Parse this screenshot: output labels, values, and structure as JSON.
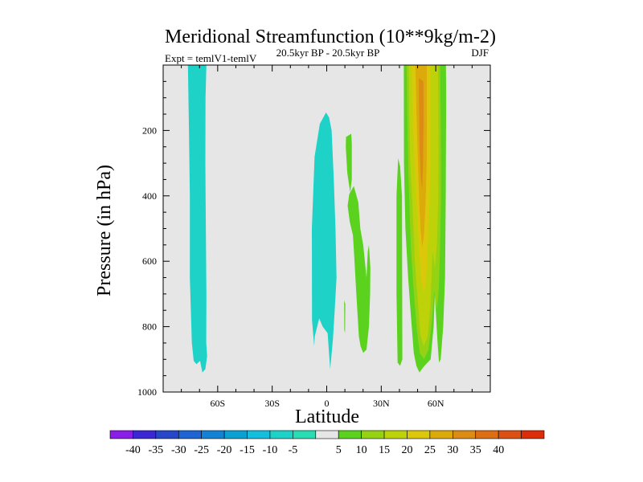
{
  "chart_data": {
    "type": "contour",
    "title": "Meridional Streamfunction (10**9kg/m-2)",
    "experiment_label": "Expt = temlV1-temlV",
    "period_label": "20.5kyr BP - 20.5kyr BP",
    "season_label": "DJF",
    "xlabel": "Latitude",
    "ylabel": "Pressure (in hPa)",
    "xlim": [
      -90,
      90
    ],
    "ylim": [
      1000,
      0
    ],
    "x_ticks": [
      {
        "value": -60,
        "label": "60S"
      },
      {
        "value": -30,
        "label": "30S"
      },
      {
        "value": 0,
        "label": "0"
      },
      {
        "value": 30,
        "label": "30N"
      },
      {
        "value": 60,
        "label": "60N"
      }
    ],
    "y_ticks": [
      {
        "value": 200,
        "label": "200"
      },
      {
        "value": 400,
        "label": "400"
      },
      {
        "value": 600,
        "label": "600"
      },
      {
        "value": 800,
        "label": "800"
      },
      {
        "value": 1000,
        "label": "1000"
      }
    ],
    "plot_background": "#e6e6e6",
    "colorbar": {
      "colors": [
        "#8a1ee6",
        "#3c28d2",
        "#2846c8",
        "#1e64d2",
        "#1482d2",
        "#0aa0d2",
        "#14bedc",
        "#1ed2c8",
        "#28dcb4",
        "#e6e6e6",
        "#5ad21e",
        "#96d214",
        "#bed20a",
        "#dcc80a",
        "#dcaa0a",
        "#dc8c14",
        "#dc6e14",
        "#dc5014",
        "#dc2d0a"
      ],
      "labels": [
        "-40",
        "-35",
        "-30",
        "-25",
        "-20",
        "-15",
        "-10",
        "-5",
        "5",
        "10",
        "15",
        "20",
        "25",
        "30",
        "35",
        "40"
      ]
    },
    "regions": [
      {
        "level": -10,
        "color": "#1ed2c8",
        "points": [
          [
            -76.4,
            0
          ],
          [
            -66.2,
            0
          ],
          [
            -66.7,
            100
          ],
          [
            -66.8,
            300
          ],
          [
            -66.5,
            500
          ],
          [
            -66.2,
            700
          ],
          [
            -66.3,
            850
          ],
          [
            -65.8,
            890
          ],
          [
            -66.8,
            930
          ],
          [
            -68.4,
            940
          ],
          [
            -69.7,
            905
          ],
          [
            -71.7,
            915
          ],
          [
            -73.2,
            905
          ],
          [
            -74.2,
            850
          ],
          [
            -75.3,
            650
          ],
          [
            -75.3,
            400
          ],
          [
            -75.8,
            200
          ]
        ]
      },
      {
        "level": -10,
        "color": "#1ed2c8",
        "points": [
          [
            -0.4,
            145
          ],
          [
            1.3,
            160
          ],
          [
            2.7,
            200
          ],
          [
            3.9,
            350
          ],
          [
            4.8,
            500
          ],
          [
            5.4,
            650
          ],
          [
            4.3,
            760
          ],
          [
            3.4,
            840
          ],
          [
            1.9,
            930
          ],
          [
            0.5,
            820
          ],
          [
            -2.2,
            800
          ],
          [
            -4.1,
            775
          ],
          [
            -6.6,
            830
          ],
          [
            -6.9,
            860
          ],
          [
            -8.1,
            780
          ],
          [
            -8.2,
            500
          ],
          [
            -6.7,
            280
          ],
          [
            -3.8,
            180
          ]
        ]
      },
      {
        "level": 5,
        "color": "#5ad21e",
        "points": [
          [
            10.6,
            220
          ],
          [
            13.5,
            210
          ],
          [
            13.8,
            240
          ],
          [
            13.8,
            350
          ],
          [
            12.9,
            390
          ],
          [
            11.3,
            330
          ],
          [
            10.5,
            250
          ]
        ]
      },
      {
        "level": 5,
        "color": "#5ad21e",
        "points": [
          [
            11.5,
            430
          ],
          [
            12.4,
            395
          ],
          [
            14.9,
            370
          ],
          [
            17.4,
            420
          ],
          [
            18.5,
            500
          ],
          [
            20.1,
            550
          ],
          [
            21.9,
            650
          ],
          [
            22.6,
            570
          ],
          [
            23.2,
            550
          ],
          [
            24.0,
            620
          ],
          [
            23.9,
            700
          ],
          [
            23.2,
            800
          ],
          [
            21.9,
            870
          ],
          [
            20.1,
            880
          ],
          [
            18.6,
            860
          ],
          [
            17.7,
            830
          ],
          [
            16.2,
            690
          ],
          [
            15.1,
            580
          ],
          [
            14.4,
            520
          ],
          [
            12.7,
            480
          ]
        ]
      },
      {
        "level": 5,
        "color": "#5ad21e",
        "points": [
          [
            9.6,
            720
          ],
          [
            10.2,
            730
          ],
          [
            10.1,
            820
          ],
          [
            9.7,
            810
          ]
        ]
      },
      {
        "level": 5,
        "color": "#5ad21e",
        "points": [
          [
            39.3,
            285
          ],
          [
            40.4,
            310
          ],
          [
            41.4,
            400
          ],
          [
            41.5,
            600
          ],
          [
            41.6,
            900
          ],
          [
            40.4,
            920
          ],
          [
            39.0,
            910
          ],
          [
            38.4,
            700
          ],
          [
            38.4,
            400
          ]
        ]
      },
      {
        "level": 5,
        "color": "#5ad21e",
        "points": [
          [
            42.4,
            0
          ],
          [
            65.6,
            0
          ],
          [
            65.7,
            100
          ],
          [
            65.5,
            400
          ],
          [
            65.1,
            650
          ],
          [
            64.1,
            800
          ],
          [
            62.7,
            900
          ],
          [
            61.8,
            910
          ],
          [
            61.0,
            850
          ],
          [
            59.5,
            700
          ],
          [
            58.8,
            800
          ],
          [
            57.2,
            900
          ],
          [
            53.8,
            920
          ],
          [
            51.0,
            940
          ],
          [
            49.3,
            920
          ],
          [
            47.9,
            880
          ],
          [
            46.2,
            760
          ],
          [
            44.8,
            650
          ],
          [
            43.3,
            500
          ],
          [
            42.5,
            300
          ]
        ]
      },
      {
        "level": 10,
        "color": "#96d214",
        "points": [
          [
            44.0,
            0
          ],
          [
            62.4,
            0
          ],
          [
            62.8,
            200
          ],
          [
            62.9,
            400
          ],
          [
            62.4,
            550
          ],
          [
            61.7,
            680
          ],
          [
            60.6,
            750
          ],
          [
            59.1,
            690
          ],
          [
            57.9,
            780
          ],
          [
            56.0,
            870
          ],
          [
            53.6,
            900
          ],
          [
            51.2,
            880
          ],
          [
            49.6,
            810
          ],
          [
            48.0,
            700
          ],
          [
            46.3,
            560
          ],
          [
            45.0,
            350
          ],
          [
            44.3,
            150
          ]
        ]
      },
      {
        "level": 15,
        "color": "#bed20a",
        "points": [
          [
            45.1,
            0
          ],
          [
            61.1,
            0
          ],
          [
            61.5,
            200
          ],
          [
            61.4,
            400
          ],
          [
            60.7,
            540
          ],
          [
            59.6,
            620
          ],
          [
            58.2,
            570
          ],
          [
            57.0,
            740
          ],
          [
            55.5,
            830
          ],
          [
            53.4,
            860
          ],
          [
            51.4,
            820
          ],
          [
            50.1,
            720
          ],
          [
            48.5,
            600
          ],
          [
            47.3,
            450
          ],
          [
            46.0,
            300
          ],
          [
            45.4,
            150
          ]
        ]
      },
      {
        "level": 20,
        "color": "#dcc80a",
        "points": [
          [
            46.8,
            0
          ],
          [
            56.8,
            0
          ],
          [
            57.0,
            150
          ],
          [
            57.1,
            300
          ],
          [
            56.5,
            420
          ],
          [
            55.7,
            540
          ],
          [
            54.7,
            650
          ],
          [
            53.5,
            700
          ],
          [
            52.1,
            660
          ],
          [
            50.8,
            560
          ],
          [
            49.7,
            450
          ],
          [
            48.8,
            350
          ],
          [
            47.7,
            220
          ],
          [
            47.1,
            100
          ]
        ]
      },
      {
        "level": 25,
        "color": "#dcaa0a",
        "points": [
          [
            48.8,
            0
          ],
          [
            55.1,
            0
          ],
          [
            55.1,
            150
          ],
          [
            55.0,
            300
          ],
          [
            54.4,
            420
          ],
          [
            53.5,
            520
          ],
          [
            52.5,
            560
          ],
          [
            51.6,
            500
          ],
          [
            50.9,
            420
          ],
          [
            50.2,
            300
          ],
          [
            49.4,
            150
          ]
        ]
      },
      {
        "level": 30,
        "color": "#dc8c14",
        "points": [
          [
            50.7,
            40
          ],
          [
            53.2,
            50
          ],
          [
            53.3,
            180
          ],
          [
            53.0,
            300
          ],
          [
            52.5,
            380
          ],
          [
            51.7,
            340
          ],
          [
            51.1,
            250
          ],
          [
            50.8,
            130
          ]
        ]
      }
    ]
  }
}
